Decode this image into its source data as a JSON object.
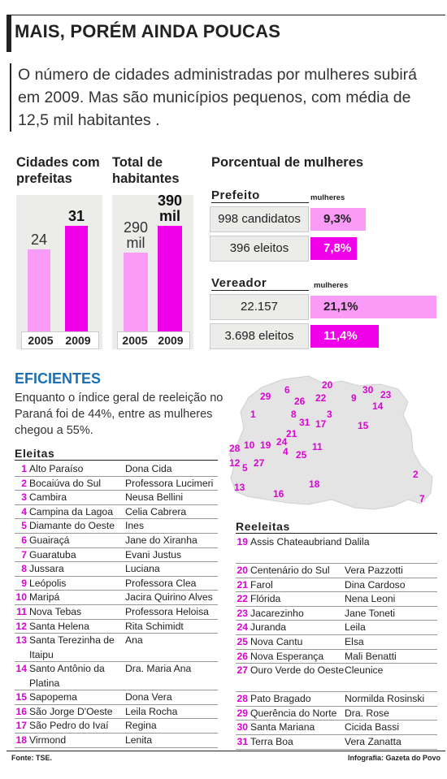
{
  "title": "MAIS, PORÉM AINDA POUCAS",
  "intro": "O número de cidades administradas por mulheres subirá em 2009. Mas são municípios pequenos, com média de 12,5 mil habitantes .",
  "chart_data": [
    {
      "type": "bar",
      "title": "Cidades com prefeitas",
      "categories": [
        "2005",
        "2009"
      ],
      "values": [
        24,
        31
      ],
      "value_labels": [
        "24",
        "31"
      ],
      "colors": [
        "#fa9cf7",
        "#f000e8"
      ]
    },
    {
      "type": "bar",
      "title": "Total de habitantes",
      "categories": [
        "2005",
        "2009"
      ],
      "values": [
        290,
        390
      ],
      "value_labels": [
        "290 mil",
        "390 mil"
      ],
      "unit": "mil",
      "colors": [
        "#fa9cf7",
        "#f000e8"
      ]
    },
    {
      "type": "bar",
      "title": "Porcentual de mulheres",
      "groups": [
        {
          "name": "Prefeito",
          "column_label": "mulheres",
          "rows": [
            {
              "label": "998 candidatos",
              "value": 9.3,
              "value_label": "9,3%"
            },
            {
              "label": "396 eleitos",
              "value": 7.8,
              "value_label": "7,8%"
            }
          ]
        },
        {
          "name": "Vereador",
          "column_label": "mulheres",
          "rows": [
            {
              "label": "22.157 candidatos",
              "value": 21.1,
              "value_label": "21,1%"
            },
            {
              "label": "3.698 eleitos",
              "value": 11.4,
              "value_label": "11,4%"
            }
          ]
        }
      ]
    }
  ],
  "eficientes": {
    "title": "EFICIENTES",
    "text": "Enquanto o índice geral de reeleição no Paraná foi de 44%, entre as mulheres chegou a 55%."
  },
  "eleitas": {
    "title": "Eleitas",
    "items": [
      {
        "n": "1",
        "city": "Alto Paraíso",
        "name": "Dona Cida"
      },
      {
        "n": "2",
        "city": "Bocaiúva do Sul",
        "name": "Professora Lucimeri"
      },
      {
        "n": "3",
        "city": "Cambira",
        "name": "Neusa Bellini"
      },
      {
        "n": "4",
        "city": "Campina da Lagoa",
        "name": "Celia Cabrera"
      },
      {
        "n": "5",
        "city": "Diamante do Oeste",
        "name": "Ines"
      },
      {
        "n": "6",
        "city": "Guairaçá",
        "name": "Jane do Xiranha"
      },
      {
        "n": "7",
        "city": "Guaratuba",
        "name": "Evani Justus"
      },
      {
        "n": "8",
        "city": "Jussara",
        "name": "Luciana"
      },
      {
        "n": "9",
        "city": "Leópolis",
        "name": "Professora Clea"
      },
      {
        "n": "10",
        "city": "Maripá",
        "name": "Jacira Quirino Alves"
      },
      {
        "n": "11",
        "city": "Nova Tebas",
        "name": "Professora Heloisa"
      },
      {
        "n": "12",
        "city": "Santa Helena",
        "name": "Rita Schimidt"
      },
      {
        "n": "13",
        "city": "Santa Terezinha de Itaipu",
        "name": "Ana"
      },
      {
        "n": "14",
        "city": "Santo Antônio da Platina",
        "name": "Dra. Maria Ana"
      },
      {
        "n": "15",
        "city": "Sapopema",
        "name": "Dona Vera"
      },
      {
        "n": "16",
        "city": "São Jorge D'Oeste",
        "name": "Leila Rocha"
      },
      {
        "n": "17",
        "city": "São Pedro do Ivaí",
        "name": "Regina"
      },
      {
        "n": "18",
        "city": "Virmond",
        "name": "Lenita"
      }
    ]
  },
  "reeleitas": {
    "title": "Reeleitas",
    "items": [
      {
        "n": "19",
        "city": "Assis Chateaubriand",
        "name": "Dalila"
      },
      {
        "n": "20",
        "city": "Centenário do Sul",
        "name": "Vera Pazzotti"
      },
      {
        "n": "21",
        "city": "Farol",
        "name": "Dina Cardoso"
      },
      {
        "n": "22",
        "city": "Flórida",
        "name": "Nena Leoni"
      },
      {
        "n": "23",
        "city": "Jacarezinho",
        "name": "Jane Toneti"
      },
      {
        "n": "24",
        "city": "Juranda",
        "name": "Leila"
      },
      {
        "n": "25",
        "city": "Nova Cantu",
        "name": "Elsa"
      },
      {
        "n": "26",
        "city": "Nova Esperança",
        "name": "Mali Benatti"
      },
      {
        "n": "27",
        "city": "Ouro Verde do Oeste",
        "name": "Cleunice"
      },
      {
        "n": "28",
        "city": "Pato Bragado",
        "name": "Normilda Rosinski"
      },
      {
        "n": "29",
        "city": "Querência do Norte",
        "name": "Dra. Rose"
      },
      {
        "n": "30",
        "city": "Santa Mariana",
        "name": "Cicida Bassi"
      },
      {
        "n": "31",
        "city": "Terra Boa",
        "name": "Vera Zanatta"
      }
    ]
  },
  "map_labels": [
    "29",
    "6",
    "20",
    "30",
    "23",
    "9",
    "14",
    "26",
    "22",
    "1",
    "8",
    "31",
    "3",
    "17",
    "15",
    "21",
    "24",
    "28",
    "10",
    "19",
    "4",
    "25",
    "11",
    "12",
    "5",
    "27",
    "2",
    "18",
    "13",
    "16",
    "7"
  ],
  "footer": {
    "source": "Fonte: TSE.",
    "credit": "Infografia: Gazeta do Povo"
  }
}
